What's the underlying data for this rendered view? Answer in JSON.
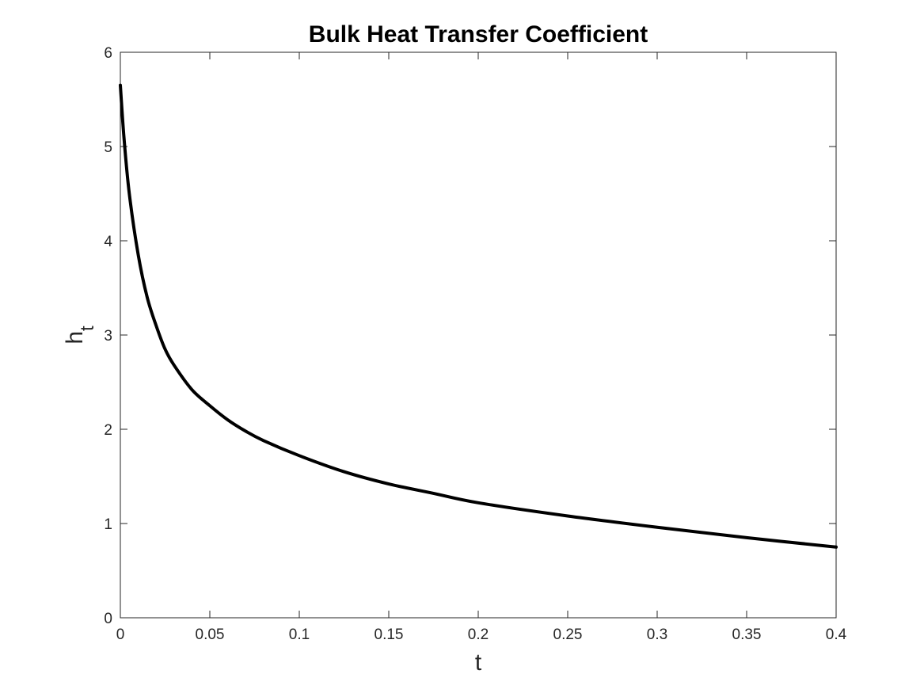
{
  "chart_data": {
    "type": "line",
    "title": "Bulk Heat Transfer Coefficient",
    "xlabel": "t",
    "ylabel_main": "h",
    "ylabel_subscript": "t",
    "xlim": [
      0,
      0.4
    ],
    "ylim": [
      0,
      6
    ],
    "xticks": [
      0,
      0.05,
      0.1,
      0.15,
      0.2,
      0.25,
      0.3,
      0.35,
      0.4
    ],
    "xtick_labels": [
      "0",
      "0.05",
      "0.1",
      "0.15",
      "0.2",
      "0.25",
      "0.3",
      "0.35",
      "0.4"
    ],
    "yticks": [
      0,
      1,
      2,
      3,
      4,
      5,
      6
    ],
    "ytick_labels": [
      "0",
      "1",
      "2",
      "3",
      "4",
      "5",
      "6"
    ],
    "grid": false,
    "series": [
      {
        "line_color": "#000000",
        "x": [
          0,
          0.002,
          0.005,
          0.01,
          0.015,
          0.02,
          0.025,
          0.03,
          0.04,
          0.05,
          0.06,
          0.07,
          0.08,
          0.1,
          0.125,
          0.15,
          0.175,
          0.2,
          0.25,
          0.3,
          0.35,
          0.4
        ],
        "y": [
          5.65,
          5.1,
          4.5,
          3.85,
          3.4,
          3.1,
          2.85,
          2.68,
          2.42,
          2.25,
          2.1,
          1.98,
          1.88,
          1.72,
          1.55,
          1.42,
          1.32,
          1.22,
          1.08,
          0.96,
          0.85,
          0.75
        ]
      }
    ]
  }
}
